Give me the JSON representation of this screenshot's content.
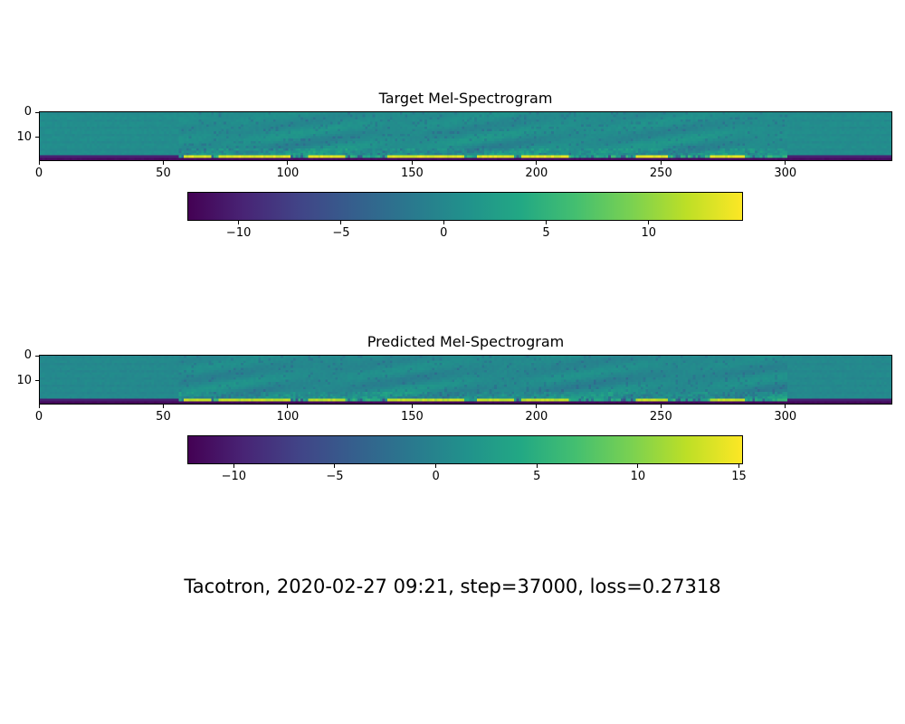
{
  "chart_data": [
    {
      "type": "heatmap",
      "title": "Target Mel-Spectrogram",
      "x_ticks": [
        0,
        50,
        100,
        150,
        200,
        250,
        300
      ],
      "y_ticks": [
        0,
        10
      ],
      "xlim": [
        0,
        343
      ],
      "ylim": [
        0,
        19
      ],
      "n_frames": 343,
      "n_mels": 20,
      "colormap": "viridis",
      "colorbar": {
        "orientation": "horizontal",
        "range": [
          -12.5,
          14.6
        ],
        "ticks": [
          -10,
          -5,
          0,
          5,
          10
        ]
      },
      "features": {
        "speech_span": [
          56,
          300
        ],
        "bright_segments": [
          [
            58,
            68
          ],
          [
            72,
            100
          ],
          [
            108,
            122
          ],
          [
            140,
            170
          ],
          [
            176,
            190
          ],
          [
            194,
            212
          ],
          [
            240,
            252
          ],
          [
            270,
            283
          ]
        ],
        "baseline_value": 0.5,
        "bottom_row_value": -12,
        "bright_value": 14
      }
    },
    {
      "type": "heatmap",
      "title": "Predicted Mel-Spectrogram",
      "x_ticks": [
        0,
        50,
        100,
        150,
        200,
        250,
        300
      ],
      "y_ticks": [
        0,
        10
      ],
      "xlim": [
        0,
        343
      ],
      "ylim": [
        0,
        19
      ],
      "n_frames": 343,
      "n_mels": 20,
      "colormap": "viridis",
      "colorbar": {
        "orientation": "horizontal",
        "range": [
          -12.3,
          15.2
        ],
        "ticks": [
          -10,
          -5,
          0,
          5,
          10,
          15
        ]
      },
      "features": {
        "speech_span": [
          56,
          300
        ],
        "bright_segments": [
          [
            58,
            68
          ],
          [
            72,
            100
          ],
          [
            108,
            122
          ],
          [
            140,
            170
          ],
          [
            176,
            190
          ],
          [
            194,
            212
          ],
          [
            240,
            252
          ],
          [
            270,
            283
          ]
        ],
        "baseline_value": 0.5,
        "bottom_row_value": -12,
        "bright_value": 13.5
      }
    }
  ],
  "footer": "Tacotron, 2020-02-27 09:21, step=37000, loss=0.27318"
}
